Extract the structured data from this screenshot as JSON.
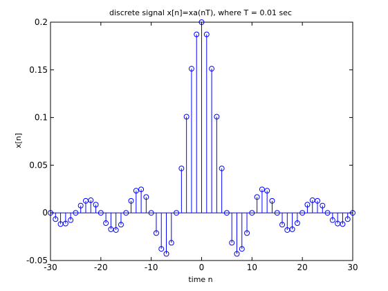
{
  "chart_data": {
    "type": "stem",
    "title": "discrete signal x[n]=xa(nT), where T = 0.01 sec",
    "xlabel": "time n",
    "ylabel": "x[n]",
    "xlim": [
      -30,
      30
    ],
    "ylim": [
      -0.05,
      0.2
    ],
    "xticks": [
      -30,
      -20,
      -10,
      0,
      10,
      20,
      30
    ],
    "xtick_labels": [
      "-30",
      "-20",
      "-10",
      "0",
      "10",
      "20",
      "30"
    ],
    "yticks": [
      -0.05,
      0,
      0.05,
      0.1,
      0.15,
      0.2
    ],
    "ytick_labels": [
      "-0.05",
      "0",
      "0.05",
      "0.1",
      "0.15",
      "0.2"
    ],
    "grid": false,
    "color": "#0000ff",
    "marker": "circle-open",
    "x": [
      -30,
      -29,
      -28,
      -27,
      -26,
      -25,
      -24,
      -23,
      -22,
      -21,
      -20,
      -19,
      -18,
      -17,
      -16,
      -15,
      -14,
      -13,
      -12,
      -11,
      -10,
      -9,
      -8,
      -7,
      -6,
      -5,
      -4,
      -3,
      -2,
      -1,
      0,
      1,
      2,
      3,
      4,
      5,
      6,
      7,
      8,
      9,
      10,
      11,
      12,
      13,
      14,
      15,
      16,
      17,
      18,
      19,
      20,
      21,
      22,
      23,
      24,
      25,
      26,
      27,
      28,
      29,
      30
    ],
    "values": [
      0,
      -0.0066,
      -0.0118,
      -0.0112,
      -0.0076,
      0,
      0.0076,
      0.0126,
      0.0132,
      0.0086,
      0,
      -0.0108,
      -0.0172,
      -0.018,
      -0.0124,
      0,
      0.0126,
      0.0232,
      0.0246,
      0.0166,
      0,
      -0.0212,
      -0.0378,
      -0.043,
      -0.0314,
      0,
      0.0466,
      0.1008,
      0.1512,
      0.1872,
      0.2,
      0.1872,
      0.1512,
      0.1008,
      0.0466,
      0,
      -0.0314,
      -0.043,
      -0.0378,
      -0.0212,
      0,
      0.0166,
      0.0246,
      0.0232,
      0.0126,
      0,
      -0.0124,
      -0.018,
      -0.0172,
      -0.0108,
      0,
      0.0086,
      0.0132,
      0.0126,
      0.0076,
      0,
      -0.0076,
      -0.0112,
      -0.0118,
      -0.0066,
      0
    ]
  }
}
